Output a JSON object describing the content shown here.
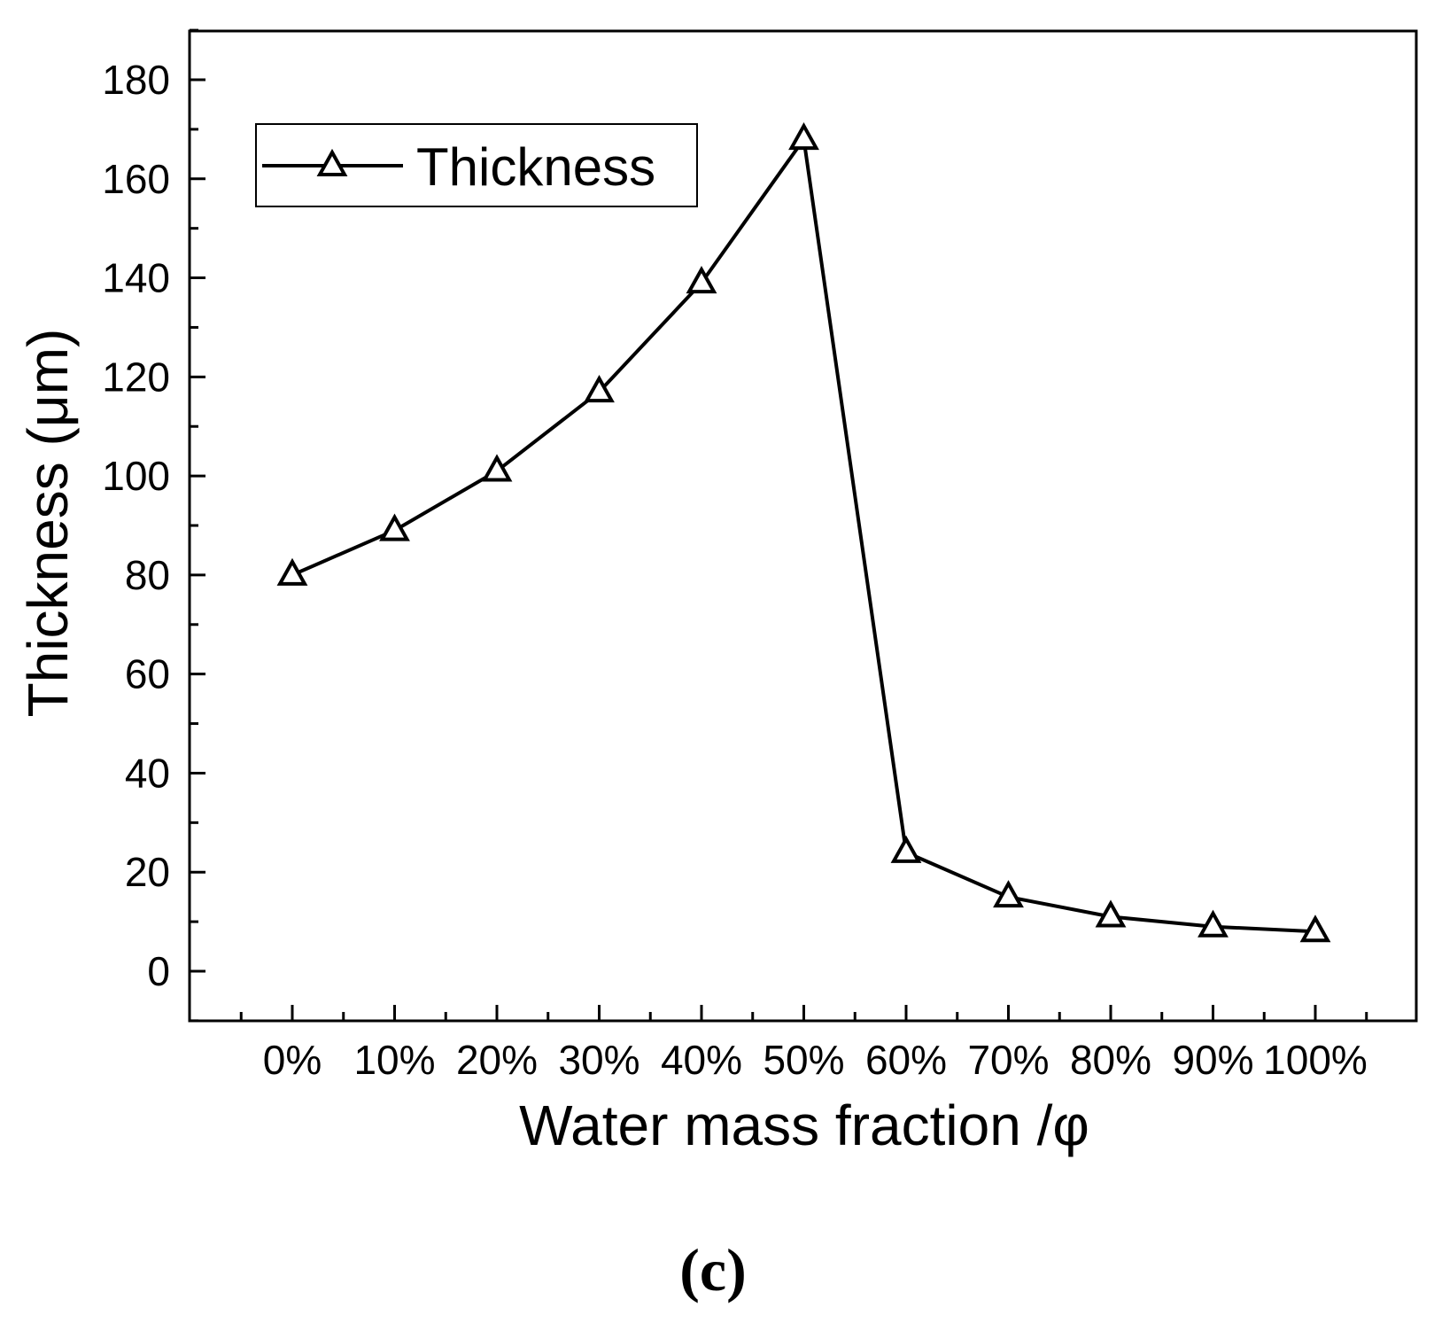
{
  "chart_data": {
    "type": "line",
    "title": "",
    "panel_label": "(c)",
    "xlabel": "Water mass fraction /φ",
    "ylabel": "Thickness (μm)",
    "categories": [
      "0%",
      "10%",
      "20%",
      "30%",
      "40%",
      "50%",
      "60%",
      "70%",
      "80%",
      "90%",
      "100%"
    ],
    "ylim": [
      -10,
      190
    ],
    "yticks": [
      0,
      20,
      40,
      60,
      80,
      100,
      120,
      140,
      160,
      180
    ],
    "ytick_labels": [
      "0",
      "20",
      "40",
      "60",
      "80",
      "100",
      "120",
      "140",
      "160",
      "180"
    ],
    "grid": false,
    "legend": {
      "position": "top-left",
      "entries": [
        "Thickness"
      ]
    },
    "series": [
      {
        "name": "Thickness",
        "marker": "open-triangle",
        "color": "#000000",
        "values": [
          80,
          89,
          101,
          117,
          139,
          168,
          24,
          15,
          11,
          9,
          8
        ]
      }
    ]
  }
}
